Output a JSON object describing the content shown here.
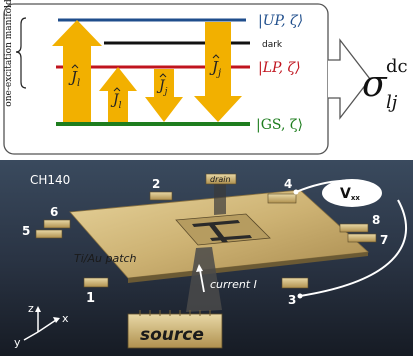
{
  "energy_diagram": {
    "manifold_label": "one-excitation manifold",
    "levels": {
      "up": "|UP, ζ⟩",
      "dark": "dark",
      "lp": "|LP, ζ⟩",
      "gs": "|GS, ζ⟩"
    },
    "arrows": {
      "left_big": "Ĵ_l",
      "left_small": "Ĵ_l",
      "right_small": "Ĵ_j",
      "right_big": "Ĵ_j"
    },
    "conductivity": {
      "symbol": "σ",
      "superscript": "dc",
      "subscript": "lj"
    },
    "colors": {
      "up_line": "#1f4e8c",
      "dark_line": "#111111",
      "lp_line": "#c0141e",
      "gs_line": "#1e7d1e",
      "arrow": "#f2b000"
    }
  },
  "device_photo": {
    "sample_label": "CH140",
    "contact_numbers": [
      "1",
      "2",
      "3",
      "4",
      "5",
      "6",
      "7",
      "8"
    ],
    "drain_label": "drain",
    "source_label": "source",
    "patch_label": "Ti/Au patch",
    "current_label": "current I",
    "voltmeter_label": "V",
    "voltmeter_subscript": "xx",
    "axes": {
      "x": "x",
      "y": "y",
      "z": "z"
    }
  }
}
